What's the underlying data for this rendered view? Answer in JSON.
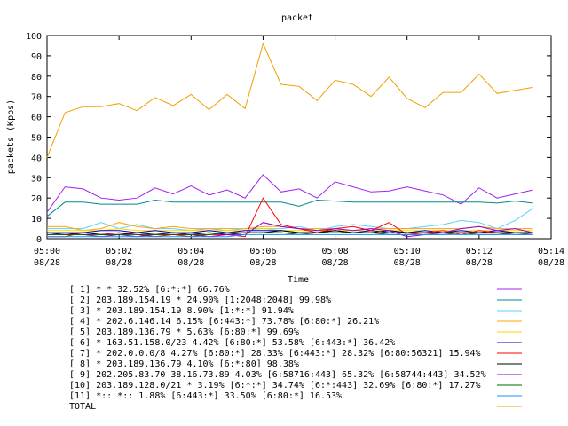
{
  "chart_data": {
    "type": "line",
    "title": "packet",
    "xlabel": "Time",
    "ylabel": "packets (Kpps)",
    "ylim": [
      0,
      100
    ],
    "xlim": [
      "05:00",
      "05:14"
    ],
    "grid": false,
    "legend_position": "bottom",
    "yticks": [
      "0",
      "10",
      "20",
      "30",
      "40",
      "50",
      "60",
      "70",
      "80",
      "90",
      "100"
    ],
    "xticks": [
      {
        "time": "05:00",
        "date": "08/28"
      },
      {
        "time": "05:02",
        "date": "08/28"
      },
      {
        "time": "05:04",
        "date": "08/28"
      },
      {
        "time": "05:06",
        "date": "08/28"
      },
      {
        "time": "05:08",
        "date": "08/28"
      },
      {
        "time": "05:10",
        "date": "08/28"
      },
      {
        "time": "05:12",
        "date": "08/28"
      },
      {
        "time": "05:14",
        "date": "08/28"
      }
    ],
    "x": [
      "05:00:00",
      "05:00:30",
      "05:01:00",
      "05:01:30",
      "05:02:00",
      "05:02:30",
      "05:03:00",
      "05:03:30",
      "05:04:00",
      "05:04:30",
      "05:05:00",
      "05:05:30",
      "05:06:00",
      "05:06:30",
      "05:07:00",
      "05:07:30",
      "05:08:00",
      "05:08:30",
      "05:09:00",
      "05:09:30",
      "05:10:00",
      "05:10:30",
      "05:11:00",
      "05:11:30",
      "05:12:00",
      "05:12:30",
      "05:13:00",
      "05:13:30"
    ],
    "series": [
      {
        "name": "[ 1] * * 32.52%  [6:*:*] 66.76%",
        "color": "#a020f0",
        "values": [
          13,
          25.5,
          24.5,
          20,
          19,
          20,
          25,
          22,
          26,
          21.5,
          24,
          20,
          31.5,
          23,
          24.5,
          20,
          28,
          25.5,
          23,
          23.5,
          25.5,
          23.5,
          21.5,
          17,
          25,
          20,
          22,
          24
        ]
      },
      {
        "name": "[ 2] 203.189.154.19 * 24.90%  [1:2048:2048] 99.98%",
        "color": "#008b8b",
        "values": [
          11,
          18,
          18,
          17,
          17,
          17,
          19,
          18,
          18,
          18,
          18,
          18,
          18,
          18,
          16,
          19,
          18.5,
          18,
          18,
          18,
          18,
          18,
          18,
          18,
          18,
          17.5,
          18.5,
          17.5
        ]
      },
      {
        "name": "[ 3] * 203.189.154.19 8.90%  [1:*:*] 91.94%",
        "color": "#5fcfff",
        "values": [
          5,
          5,
          5,
          8,
          5,
          7,
          5,
          5,
          4,
          5,
          4,
          5,
          5,
          5,
          6,
          4,
          6,
          7,
          6,
          5,
          5,
          6,
          7,
          9,
          8,
          5,
          9,
          15
        ]
      },
      {
        "name": "[ 4] * 202.6.146.14 6.15%  [6:443:*] 73.78% [6:80:*] 26.21%",
        "color": "#ffa500",
        "values": [
          6,
          6,
          4,
          5,
          8,
          6,
          5,
          6,
          5,
          5,
          5,
          5,
          6,
          6,
          5,
          5,
          5,
          4,
          5,
          5,
          5,
          5,
          5,
          5,
          6,
          5,
          5,
          5
        ]
      },
      {
        "name": "[ 5] 203.189.136.79 * 5.63%  [6:80:*] 99.69%",
        "color": "#ffd700",
        "values": [
          4,
          4,
          4,
          4,
          5,
          4,
          4,
          4,
          4,
          4,
          4,
          4,
          5,
          4,
          4,
          4,
          4,
          4,
          4,
          4,
          4,
          4,
          4,
          4,
          4,
          4,
          4,
          4
        ]
      },
      {
        "name": "[ 6] * 163.51.158.0/23 4.42%  [6:80:*] 53.58% [6:443:*] 36.42%",
        "color": "#0000cd",
        "values": [
          3,
          3,
          3,
          4,
          4,
          3,
          4,
          3,
          3,
          4,
          3,
          4,
          4,
          4,
          3,
          3,
          4,
          3,
          4,
          3,
          3,
          4,
          3,
          4,
          3,
          4,
          3,
          3
        ]
      },
      {
        "name": "[ 7] * 202.0.0.0/8 4.27%  [6:80:*] 28.33% [6:443:*] 28.32% [6:80:56321] 15.94%",
        "color": "#ff0000",
        "values": [
          1,
          1,
          3,
          2,
          3,
          2,
          1,
          2,
          1,
          2,
          2,
          1,
          20,
          7,
          5,
          3,
          5,
          6,
          4,
          8,
          2,
          3,
          4,
          2,
          4,
          3,
          2,
          2
        ]
      },
      {
        "name": "[ 8] * 203.189.136.79 4.10%  [6:*:80] 98.38%",
        "color": "#000000",
        "values": [
          3,
          2,
          3,
          2,
          2,
          3,
          2,
          3,
          2,
          3,
          2,
          3,
          3,
          4,
          3,
          3,
          4,
          3,
          3,
          4,
          3,
          3,
          3,
          3,
          3,
          3,
          3,
          3
        ]
      },
      {
        "name": "[ 9] 202.205.83.70 38.16.73.89 4.03%  [6:58716:443] 65.32% [6:58744:443] 34.52%",
        "color": "#9400d3",
        "values": [
          2,
          2,
          2,
          1,
          2,
          1,
          2,
          2,
          2,
          1,
          2,
          2,
          8,
          6,
          5,
          4,
          5,
          4,
          5,
          4,
          1,
          2,
          3,
          5,
          6,
          4,
          5,
          3
        ]
      },
      {
        "name": "[10] 203.189.128.0/21 * 3.19%  [6:*:*] 34.74% [6:*:443] 32.69% [6:80:*] 17.27%",
        "color": "#006400",
        "values": [
          2,
          2,
          2,
          2,
          2,
          2,
          2,
          2,
          2,
          2,
          3,
          3,
          3,
          3,
          2,
          3,
          3,
          3,
          3,
          2,
          2,
          2,
          2,
          3,
          2,
          2,
          3,
          2
        ]
      },
      {
        "name": "[11] *:: *:: 1.88%  [6:443:*] 33.50% [6:80:*] 16.53%",
        "color": "#1e90ff",
        "values": [
          1,
          1,
          1,
          1,
          1,
          1,
          1,
          1,
          1,
          1,
          1,
          2,
          2,
          2,
          2,
          2,
          2,
          2,
          2,
          2,
          2,
          2,
          2,
          2,
          2,
          2,
          2,
          2
        ]
      },
      {
        "name": "TOTAL",
        "color": "#f0a000",
        "values": [
          40,
          62,
          65,
          65,
          66.5,
          63,
          69.5,
          65.5,
          71,
          63.5,
          71,
          64,
          96,
          76,
          75,
          68,
          78,
          76,
          70,
          79.5,
          69,
          64.5,
          72,
          72,
          81,
          71.5,
          73,
          74.5
        ]
      }
    ]
  }
}
